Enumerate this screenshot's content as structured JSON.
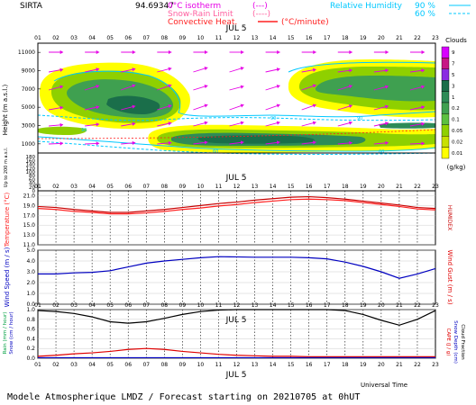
{
  "header": {
    "site": "SIRTA",
    "coord": "94.69347",
    "legend_isotherm": "0°C isotherm",
    "legend_isotherm_key": "(---)",
    "legend_snow_rain": "Snow-Rain Limit",
    "legend_snow_rain_key": "(----)",
    "legend_convective": "Convective Heat.",
    "legend_convective_key": "(°C/minute)",
    "rh_label": "Relative Humidity",
    "rh_90": "90 %",
    "rh_60": "60 %"
  },
  "footer": {
    "universal_time": "Universal Time",
    "caption": "Modele Atmospherique LMDZ / Forecast starting on 20210705 at 0hUT"
  },
  "colors": {
    "cloud_scale": [
      "#ffff00",
      "#c8e000",
      "#8fd000",
      "#5cc040",
      "#3fa050",
      "#2e8b57",
      "#1a6e4a",
      "#8a2be2",
      "#c71585",
      "#d800ff"
    ],
    "arrows": "#e600e6",
    "rh": "#00c8ff",
    "temperature": "#ff2020",
    "humidex": "#c80000",
    "wind_speed": "#0000c0",
    "precip_rain": "#e00000",
    "cloud_fraction": "#000000"
  },
  "chart_data": [
    {
      "type": "heatmap",
      "name": "clouds",
      "date_label": "JUL  5",
      "x": [
        "01",
        "02",
        "03",
        "04",
        "05",
        "06",
        "07",
        "08",
        "09",
        "10",
        "11",
        "12",
        "13",
        "14",
        "15",
        "16",
        "17",
        "18",
        "19",
        "20",
        "21",
        "22",
        "23"
      ],
      "ylabel": "Height (m a.s.l.)",
      "ylabel_low": "Up to 200 m a.s.l.",
      "yticks_upper": [
        11000,
        9000,
        7000,
        5000,
        3000,
        1000
      ],
      "yticks_lower": [
        180,
        160,
        140,
        120,
        100,
        80,
        60,
        40,
        20,
        0
      ],
      "colorbar_title": "Clouds",
      "colorbar_unit": "(g/kg)",
      "colorbar_ticks": [
        "9",
        "7",
        "5",
        "3",
        "1",
        "0.2",
        "0.1",
        "0.05",
        "0.02",
        "0.01"
      ],
      "rh_contour_labels": [
        "90",
        "60"
      ]
    },
    {
      "type": "line",
      "name": "temperature",
      "date_label": "JUL  5",
      "x": [
        "01",
        "02",
        "03",
        "04",
        "05",
        "06",
        "07",
        "08",
        "09",
        "10",
        "11",
        "12",
        "13",
        "14",
        "15",
        "16",
        "17",
        "18",
        "19",
        "20",
        "21",
        "22",
        "23"
      ],
      "ylabel": "Temperature (°C)",
      "y2label": "HUMIDEX",
      "yticks": [
        21.0,
        19.0,
        17.0,
        15.0,
        13.0,
        11.0
      ],
      "ylim": [
        11,
        22
      ],
      "series": [
        {
          "values": [
            18.4,
            18.2,
            17.8,
            17.6,
            17.3,
            17.3,
            17.5,
            17.8,
            18.2,
            18.5,
            18.9,
            19.2,
            19.6,
            19.9,
            20.2,
            20.3,
            20.2,
            20.0,
            19.6,
            19.2,
            18.8,
            18.3,
            18.1
          ]
        },
        {
          "values": [
            18.8,
            18.6,
            18.2,
            17.9,
            17.6,
            17.6,
            17.9,
            18.2,
            18.6,
            19.0,
            19.4,
            19.7,
            20.1,
            20.4,
            20.7,
            20.8,
            20.6,
            20.3,
            19.9,
            19.5,
            19.1,
            18.6,
            18.4
          ]
        }
      ]
    },
    {
      "type": "line",
      "name": "wind",
      "x": [
        "01",
        "02",
        "03",
        "04",
        "05",
        "06",
        "07",
        "08",
        "09",
        "10",
        "11",
        "12",
        "13",
        "14",
        "15",
        "16",
        "17",
        "18",
        "19",
        "20",
        "21",
        "22",
        "23"
      ],
      "ylabel": "Wind Speed (m / s)",
      "y2label": "Wind Gust (m / s)",
      "yticks": [
        5.0,
        4.0,
        3.0,
        2.0,
        1.0,
        0.0
      ],
      "ylim": [
        0,
        5
      ],
      "series": [
        {
          "values": [
            2.8,
            2.8,
            2.9,
            2.95,
            3.1,
            3.45,
            3.8,
            4.0,
            4.15,
            4.3,
            4.4,
            4.38,
            4.35,
            4.35,
            4.35,
            4.3,
            4.2,
            3.9,
            3.5,
            3.0,
            2.4,
            2.8,
            3.3
          ]
        }
      ]
    },
    {
      "type": "line",
      "name": "precip",
      "date_label": "JUL  5",
      "x": [
        "01",
        "02",
        "03",
        "04",
        "05",
        "06",
        "07",
        "08",
        "09",
        "10",
        "11",
        "12",
        "13",
        "14",
        "15",
        "16",
        "17",
        "18",
        "19",
        "20",
        "21",
        "22",
        "23"
      ],
      "ylabel": "Rain (mm / hour)",
      "ylabel2": "Snow (cm / hour)",
      "y2label": "CAPE (J / g)",
      "y2label_b": "Snow Depth (cm)",
      "y2label_c": "Cloud Fraction",
      "yticks": [
        1.0,
        0.8,
        0.6,
        0.4,
        0.2,
        0.0
      ],
      "ylim": [
        0,
        1
      ],
      "series": [
        {
          "values": [
            0.98,
            0.96,
            0.92,
            0.85,
            0.75,
            0.72,
            0.75,
            0.82,
            0.9,
            0.96,
            0.99,
            1.0,
            1.0,
            1.0,
            1.0,
            1.0,
            1.0,
            0.98,
            0.9,
            0.78,
            0.68,
            0.8,
            0.98
          ]
        },
        {
          "values": [
            0.04,
            0.06,
            0.09,
            0.11,
            0.14,
            0.18,
            0.2,
            0.18,
            0.14,
            0.11,
            0.08,
            0.06,
            0.05,
            0.04,
            0.04,
            0.03,
            0.03,
            0.03,
            0.03,
            0.03,
            0.03,
            0.03,
            0.03
          ]
        },
        {
          "values": [
            0.01,
            0.01,
            0.01,
            0.01,
            0.01,
            0.01,
            0.01,
            0.01,
            0.01,
            0.01,
            0.01,
            0.01,
            0.01,
            0.01,
            0.01,
            0.01,
            0.01,
            0.01,
            0.01,
            0.01,
            0.01,
            0.01,
            0.01
          ]
        }
      ]
    }
  ]
}
